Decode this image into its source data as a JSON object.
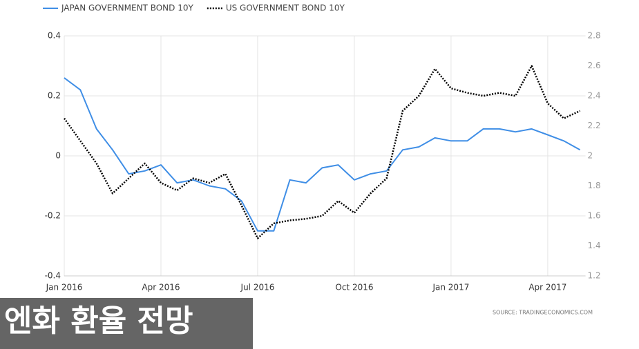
{
  "chart_data": {
    "type": "line",
    "categories": [
      "Jan 2016",
      null,
      null,
      null,
      null,
      null,
      "Apr 2016",
      null,
      null,
      null,
      null,
      null,
      "Jul 2016",
      null,
      null,
      null,
      null,
      null,
      "Oct 2016",
      null,
      null,
      null,
      null,
      null,
      "Jan 2017",
      null,
      null,
      null,
      null,
      null,
      "Apr 2017",
      null,
      null
    ],
    "series": [
      {
        "name": "JAPAN GOVERNMENT BOND 10Y",
        "color": "#3f8ee6",
        "values": [
          0.26,
          0.22,
          0.09,
          0.02,
          -0.06,
          -0.05,
          -0.03,
          -0.09,
          -0.08,
          -0.1,
          -0.11,
          -0.15,
          -0.25,
          -0.25,
          -0.08,
          -0.09,
          -0.04,
          -0.03,
          -0.08,
          -0.06,
          -0.05,
          0.02,
          0.03,
          0.06,
          0.05,
          0.05,
          0.09,
          0.09,
          0.08,
          0.09,
          0.07,
          0.05,
          0.02
        ]
      },
      {
        "name": "US GOVERNMENT BOND 10Y",
        "color": "#000000",
        "axis": "y2",
        "dashed": true,
        "values": [
          2.25,
          2.1,
          1.95,
          1.75,
          1.85,
          1.95,
          1.82,
          1.77,
          1.85,
          1.82,
          1.88,
          1.67,
          1.45,
          1.55,
          1.57,
          1.58,
          1.6,
          1.7,
          1.62,
          1.75,
          1.85,
          2.3,
          2.4,
          2.58,
          2.45,
          2.42,
          2.4,
          2.42,
          2.4,
          2.6,
          2.35,
          2.25,
          2.3
        ]
      }
    ],
    "ylim": [
      -0.4,
      0.4
    ],
    "yticks": [
      -0.4,
      -0.2,
      0,
      0.2,
      0.4
    ],
    "y2lim": [
      1.2,
      2.8
    ],
    "y2ticks": [
      1.2,
      1.4,
      1.6,
      1.8,
      2,
      2.2,
      2.4,
      2.6,
      2.8
    ],
    "grid": true,
    "legend": "top-left",
    "source": "SOURCE: TRADINGECONOMICS.COM"
  },
  "caption": "엔화 환율 전망"
}
